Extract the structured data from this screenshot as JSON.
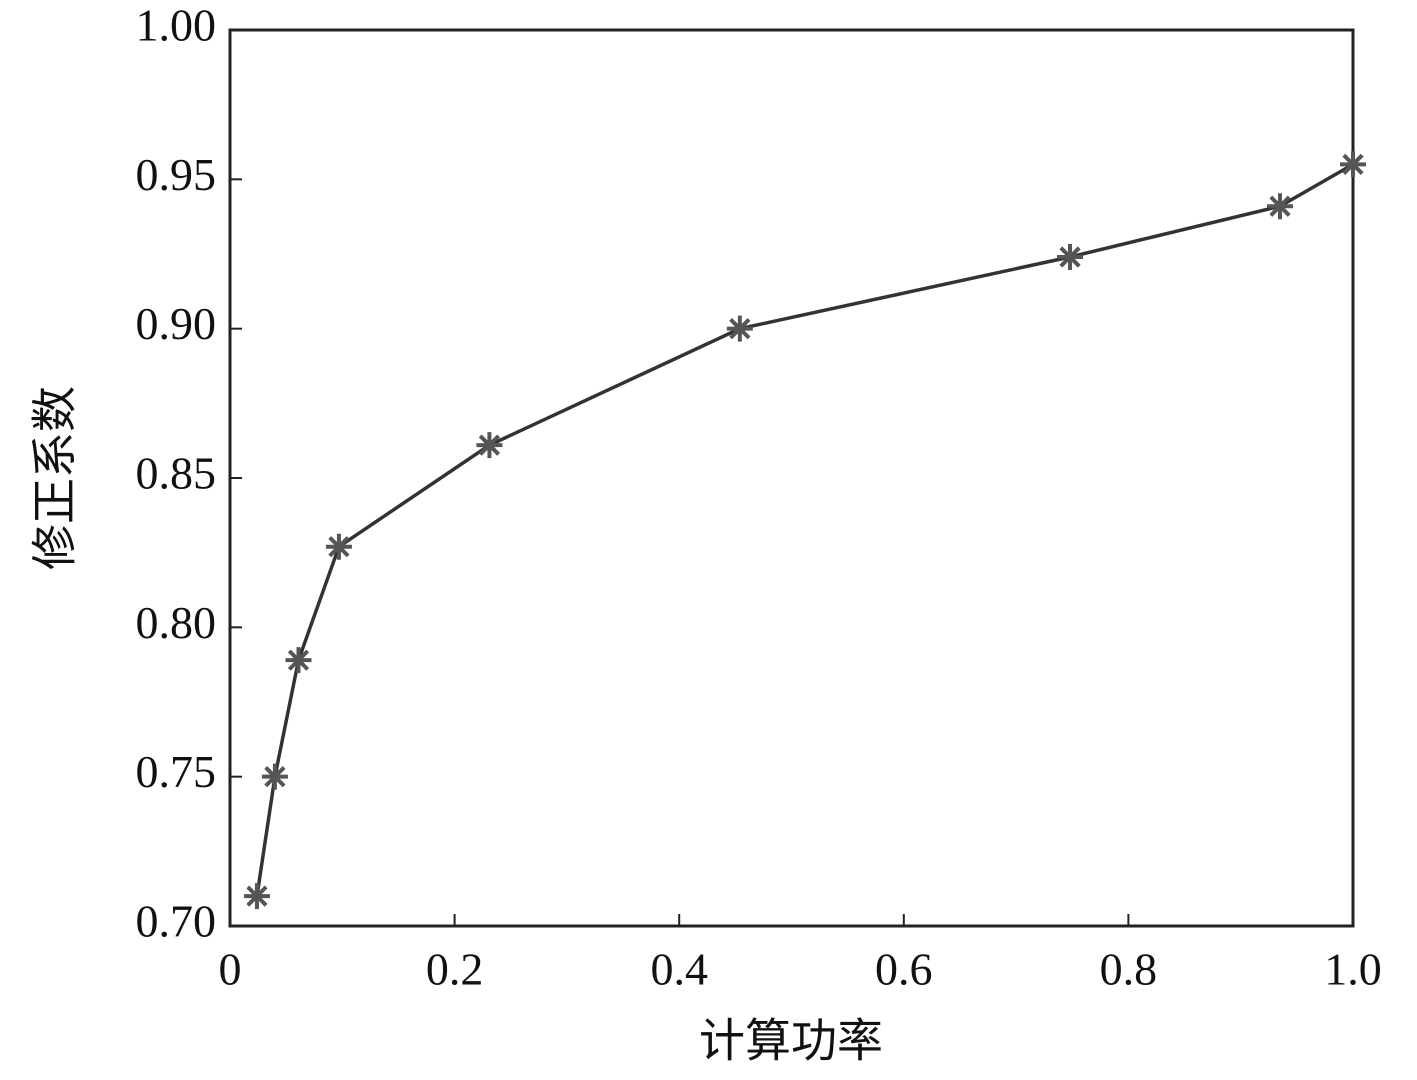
{
  "chart_data": {
    "type": "line",
    "x_label": "计算功率",
    "y_label": "修正系数",
    "x": [
      0.024,
      0.04,
      0.061,
      0.097,
      0.231,
      0.454,
      0.748,
      0.935,
      1.0
    ],
    "series": [
      {
        "color": "#333333",
        "marker_color": "#555555",
        "marker": "asterisk",
        "values": [
          0.71,
          0.75,
          0.789,
          0.827,
          0.861,
          0.9,
          0.924,
          0.941,
          0.955
        ]
      }
    ],
    "xlim": [
      0,
      1.0
    ],
    "xticks": [
      0,
      0.2,
      0.4,
      0.6,
      0.8,
      {
        "value": 1.0,
        "label": "1.0"
      }
    ],
    "ylim": [
      0.7,
      1.0
    ],
    "yticks": [
      {
        "value": 0.7,
        "label": "0.70"
      },
      {
        "value": 0.75,
        "label": "0.75"
      },
      {
        "value": 0.8,
        "label": "0.80"
      },
      {
        "value": 0.85,
        "label": "0.85"
      },
      {
        "value": 0.9,
        "label": "0.90"
      },
      {
        "value": 0.95,
        "label": "0.95"
      },
      {
        "value": 1.0,
        "label": "1.00"
      }
    ],
    "grid": false
  }
}
